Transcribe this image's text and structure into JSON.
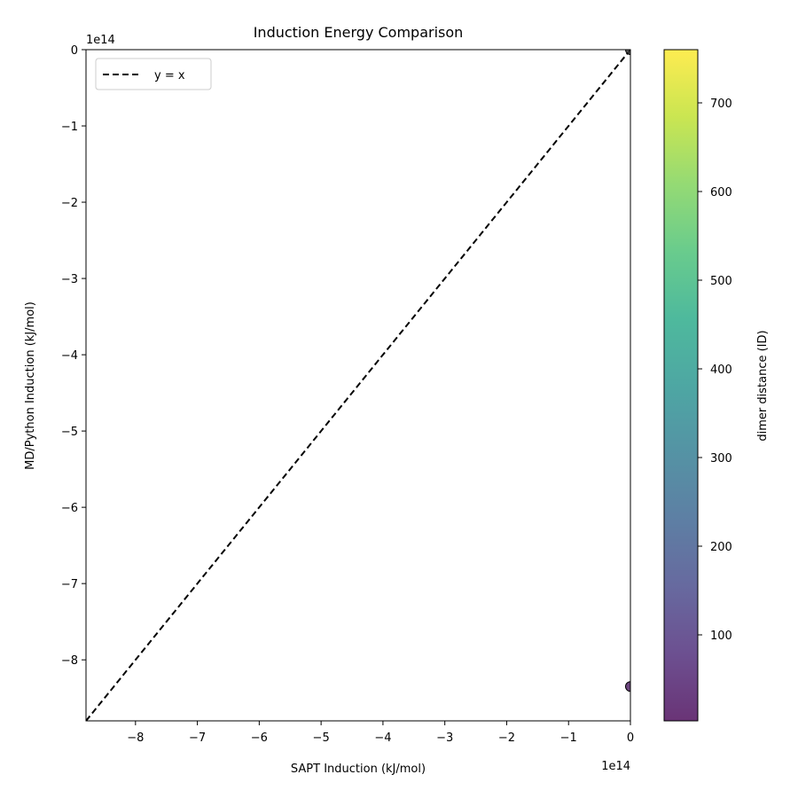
{
  "chart_data": {
    "type": "scatter",
    "title": "Induction Energy Comparison",
    "xlabel": "SAPT Induction (kJ/mol)",
    "ylabel": "MD/Python Induction (kJ/mol)",
    "x_offset_label": "1e14",
    "y_offset_label": "1e14",
    "xlim": [
      -8.8,
      0
    ],
    "ylim": [
      -8.8,
      0
    ],
    "xticks": [
      -8,
      -7,
      -6,
      -5,
      -4,
      -3,
      -2,
      -1,
      0
    ],
    "yticks": [
      0,
      -1,
      -2,
      -3,
      -4,
      -5,
      -6,
      -7,
      -8
    ],
    "grid": false,
    "legend": {
      "position": "top-left",
      "entries": [
        {
          "label": "y = x",
          "style": "dashed",
          "color": "#000000"
        }
      ]
    },
    "reference_line": {
      "label": "y = x",
      "from": [
        -8.8,
        -8.8
      ],
      "to": [
        0,
        0
      ]
    },
    "points": [
      {
        "x": 0.0,
        "y": -8.35,
        "value": 5,
        "color": "#46165e"
      },
      {
        "x": 0.0,
        "y": 0.0,
        "value": 700,
        "color": "#3b3b3b"
      }
    ],
    "colorbar": {
      "label": "dimer distance (ID)",
      "range": [
        3,
        760
      ],
      "ticks": [
        100,
        200,
        300,
        400,
        500,
        600,
        700
      ],
      "colormap": "viridis"
    }
  }
}
